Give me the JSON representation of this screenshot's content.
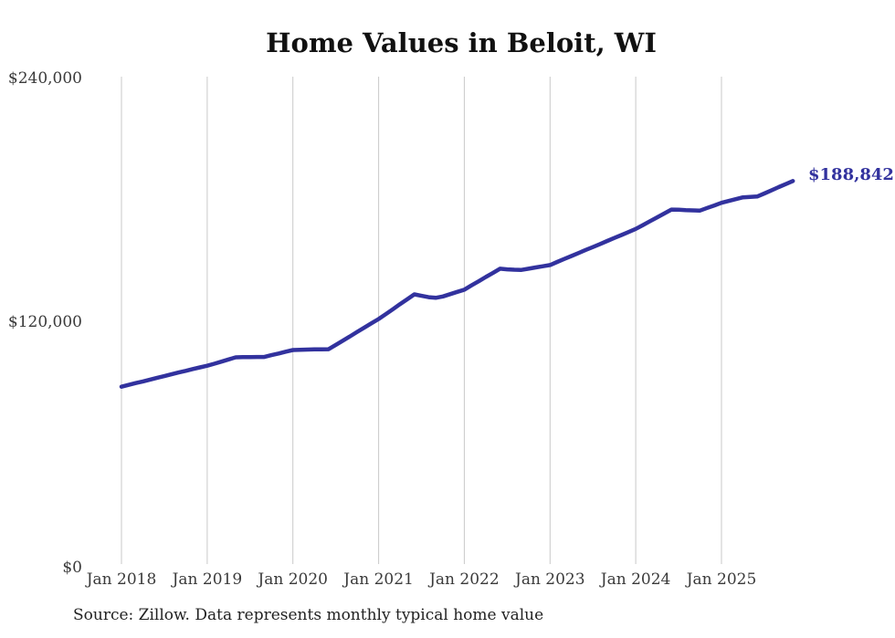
{
  "chart": {
    "title": "Home Values in Beloit, WI",
    "end_label": "$188,842",
    "source": "Source: Zillow. Data represents monthly typical home value",
    "accent_color": "#32329e",
    "grid_color": "#c9c9c9"
  },
  "chart_data": {
    "type": "line",
    "title": "Home Values in Beloit, WI",
    "xlabel": "",
    "ylabel": "",
    "ylim": [
      0,
      240000
    ],
    "y_tick_labels": [
      "$0",
      "$120,000",
      "$240,000"
    ],
    "x_tick_labels": [
      "Jan 2018",
      "Jan 2019",
      "Jan 2020",
      "Jan 2021",
      "Jan 2022",
      "Jan 2023",
      "Jan 2024",
      "Jan 2025"
    ],
    "x_start": "2018-01",
    "x_end": "2025-11",
    "interval": "monthly",
    "grid": "vertical-only",
    "legend_position": "none",
    "end_value": 188842,
    "series": [
      {
        "name": "Typical home value",
        "values": [
          87900,
          88800,
          89700,
          90500,
          91400,
          92300,
          93100,
          94000,
          94900,
          95700,
          96600,
          97400,
          98200,
          99200,
          100200,
          101300,
          102300,
          102400,
          102400,
          102500,
          102500,
          103400,
          104200,
          105100,
          105900,
          106000,
          106100,
          106200,
          106200,
          106300,
          108400,
          110500,
          112600,
          114800,
          116900,
          119000,
          121100,
          123500,
          125900,
          128400,
          130800,
          133200,
          132500,
          131800,
          131500,
          132200,
          133300,
          134400,
          135500,
          137600,
          139600,
          141700,
          143700,
          145800,
          145500,
          145300,
          145200,
          145800,
          146400,
          147000,
          147600,
          149100,
          150600,
          152000,
          153500,
          155000,
          156400,
          157900,
          159400,
          160900,
          162300,
          163800,
          165300,
          167200,
          169100,
          171000,
          172900,
          174800,
          174700,
          174500,
          174400,
          174300,
          175600,
          176800,
          178100,
          179000,
          179900,
          180800,
          181000,
          181200,
          182700,
          184200,
          185800,
          187300,
          188842
        ]
      }
    ]
  }
}
